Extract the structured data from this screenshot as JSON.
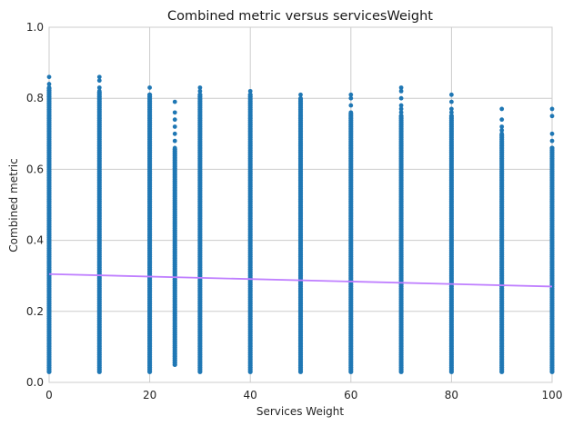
{
  "chart_data": {
    "type": "scatter",
    "title": "Combined metric versus servicesWeight",
    "xlabel": "Services Weight",
    "ylabel": "Combined metric",
    "xlim": [
      0,
      100
    ],
    "ylim": [
      0,
      1.0
    ],
    "x_ticks": [
      0,
      20,
      40,
      60,
      80,
      100
    ],
    "x_tick_labels": [
      "0",
      "20",
      "40",
      "60",
      "80",
      "100"
    ],
    "y_ticks": [
      0,
      0.2,
      0.4,
      0.6,
      0.8,
      1.0
    ],
    "y_tick_labels": [
      "0.0",
      "0.2",
      "0.4",
      "0.6",
      "0.8",
      "1.0"
    ],
    "grid": true,
    "point_color": "#1f77b4",
    "trend_color": "#bf7fff",
    "columns": [
      {
        "x": 0,
        "min": 0.03,
        "max": 0.86,
        "outliers": [
          0.86,
          0.84,
          0.83
        ]
      },
      {
        "x": 10,
        "min": 0.03,
        "max": 0.86,
        "outliers": [
          0.86,
          0.85,
          0.83,
          0.82
        ]
      },
      {
        "x": 20,
        "min": 0.03,
        "max": 0.83,
        "outliers": [
          0.83,
          0.81
        ]
      },
      {
        "x": 25,
        "min": 0.05,
        "max": 0.79,
        "outliers": [
          0.79,
          0.76,
          0.74,
          0.72,
          0.7,
          0.68,
          0.66
        ]
      },
      {
        "x": 30,
        "min": 0.03,
        "max": 0.83,
        "outliers": [
          0.83,
          0.82,
          0.81
        ]
      },
      {
        "x": 40,
        "min": 0.03,
        "max": 0.82,
        "outliers": [
          0.82,
          0.81
        ]
      },
      {
        "x": 50,
        "min": 0.03,
        "max": 0.81,
        "outliers": [
          0.81,
          0.8
        ]
      },
      {
        "x": 60,
        "min": 0.03,
        "max": 0.81,
        "outliers": [
          0.81,
          0.8,
          0.78,
          0.76
        ]
      },
      {
        "x": 70,
        "min": 0.03,
        "max": 0.83,
        "outliers": [
          0.83,
          0.82,
          0.8,
          0.78,
          0.77,
          0.76,
          0.75
        ]
      },
      {
        "x": 80,
        "min": 0.03,
        "max": 0.81,
        "outliers": [
          0.81,
          0.79,
          0.77,
          0.76,
          0.75
        ]
      },
      {
        "x": 90,
        "min": 0.03,
        "max": 0.77,
        "outliers": [
          0.77,
          0.74,
          0.72,
          0.71,
          0.7
        ]
      },
      {
        "x": 100,
        "min": 0.03,
        "max": 0.77,
        "outliers": [
          0.77,
          0.75,
          0.7,
          0.68,
          0.66
        ]
      }
    ],
    "trend_line": {
      "x": [
        0,
        100
      ],
      "y": [
        0.305,
        0.27
      ]
    }
  }
}
